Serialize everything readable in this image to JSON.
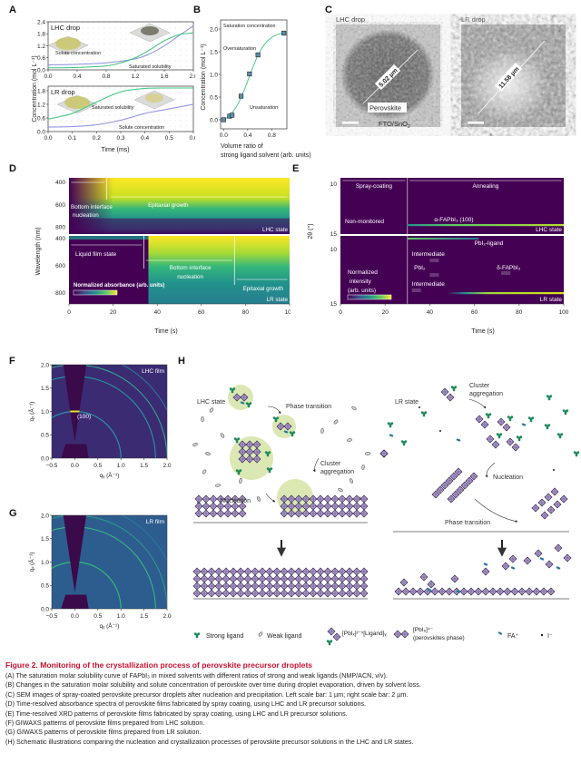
{
  "panels": {
    "A": {
      "label": "A"
    },
    "B": {
      "label": "B"
    },
    "C": {
      "label": "C"
    },
    "D": {
      "label": "D"
    },
    "E": {
      "label": "E"
    },
    "F": {
      "label": "F"
    },
    "G": {
      "label": "G"
    },
    "H": {
      "label": "H"
    }
  },
  "C_images": {
    "left_title": "LHC drop",
    "left_measure": "5.02 µm",
    "left_perovskite": "Perovskite",
    "left_substrate": "FTO/SnO",
    "left_substrate_sub": "2",
    "right_title": "LR drop",
    "right_measure": "11.58 µm"
  },
  "H_schematic": {
    "lhc_state": "LHC state",
    "lhc_phase_transition": "Phase transition",
    "lhc_cluster": "Cluster",
    "lhc_aggregation": "aggregation",
    "lhc_nucleation": "Nucleation",
    "lr_state": "LR state",
    "lr_cluster": "Cluster",
    "lr_aggregation": "aggregation",
    "lr_nucleation": "Nucleation",
    "lr_phase_transition": "Phase transition",
    "legend": {
      "strong": "Strong ligand",
      "weak": "Weak ligand",
      "complex": "[PbIₓ]²⁻ˣ[Ligand]ᵧ",
      "perov": "[PbI₆]⁴⁻",
      "perov_sub": "(perovskites phase)",
      "fa": "FA⁺",
      "iodide": "I⁻"
    }
  },
  "caption": {
    "title": "Figure 2.  Monitoring of the crystallization process of perovskite precursor droplets",
    "lines": [
      "(A) The saturation molar solubility curve of FAPbI₃ in mixed solvents with different ratios of strong and weak ligands (NMP/ACN, v/v).",
      "(B) Changes in the saturation molar solubility and solute concentration of perovskite over time during droplet evaporation, driven by solvent loss.",
      "(C) SEM images of spray-coated perovskite precursor droplets after nucleation and precipitation. Left scale bar: 1 µm; right scale bar: 2 µm.",
      "(D) Time-resolved absorbance spectra of perovskite films fabricated by spray coating, using LHC and LR precursor solutions.",
      "(E) Time-resolved XRD patterns of perovskite films fabricated by spray coating, using LHC and LR precursor solutions.",
      "(F) GIWAXS patterns of perovskite films prepared from LHC solution.",
      "(G) GIWAXS patterns of perovskite films prepared from LR solution.",
      "(H) Schematic illustrations comparing the nucleation and crystallization processes of perovskite precursor solutions in the LHC and LR states."
    ]
  },
  "chart_data": [
    {
      "id": "A-top",
      "type": "line",
      "title": "LHC drop",
      "xlabel": "Time (ms)",
      "ylabel": "Concentration (mol L⁻¹)",
      "xlim": [
        0,
        2.0
      ],
      "ylim": [
        0,
        2.4
      ],
      "xticks": [
        "0.0",
        "0.4",
        "0.8",
        "1.2",
        "1.6",
        "2.0"
      ],
      "yticks": [
        "0.0",
        "0.6",
        "1.2",
        "1.8",
        "2.4"
      ],
      "series": [
        {
          "name": "Solute concentration",
          "color": "#8a8ee0",
          "x": [
            0,
            0.4,
            0.8,
            1.2,
            1.4,
            1.6,
            1.8,
            2.0
          ],
          "y": [
            0.25,
            0.28,
            0.35,
            0.55,
            0.8,
            1.2,
            1.7,
            2.2
          ]
        },
        {
          "name": "Saturated solubility",
          "color": "#3cc47c",
          "x": [
            0,
            0.4,
            0.8,
            1.0,
            1.2,
            1.4,
            1.6,
            1.8,
            2.0
          ],
          "y": [
            0.1,
            0.12,
            0.2,
            0.35,
            0.6,
            1.0,
            1.45,
            1.75,
            1.85
          ]
        }
      ],
      "annotations": [
        "Solute concentration",
        "Saturated solubility"
      ]
    },
    {
      "id": "A-bottom",
      "type": "line",
      "title": "LR drop",
      "xlabel": "Time (ms)",
      "ylabel": "Concentration (mol L⁻¹)",
      "xlim": [
        0,
        0.6
      ],
      "ylim": [
        0,
        2.0
      ],
      "xticks": [
        "0.0",
        "0.1",
        "0.2",
        "0.3",
        "0.4",
        "0.5",
        "0.6"
      ],
      "yticks": [
        "0.0",
        "0.6",
        "1.2",
        "1.8"
      ],
      "series": [
        {
          "name": "Saturated solubility",
          "color": "#3cc47c",
          "x": [
            0,
            0.1,
            0.2,
            0.3,
            0.4,
            0.5,
            0.6
          ],
          "y": [
            0.55,
            0.8,
            1.3,
            1.75,
            1.9,
            1.92,
            1.92
          ]
        },
        {
          "name": "Solute concentration",
          "color": "#8a8ee0",
          "x": [
            0,
            0.1,
            0.2,
            0.3,
            0.4,
            0.5,
            0.6
          ],
          "y": [
            0.2,
            0.22,
            0.3,
            0.5,
            0.8,
            1.0,
            1.2
          ]
        }
      ],
      "annotations": [
        "Saturated solubility",
        "Solute concentration"
      ]
    },
    {
      "id": "B",
      "type": "scatter",
      "title": "",
      "xlabel": "Volume ratio of strong ligand solvent (arb. units)",
      "xlabel_line1": "Volume ratio of",
      "xlabel_line2": "strong ligand solvent (arb. units)",
      "ylabel": "Concentration (mol L⁻¹)",
      "xlim": [
        -0.05,
        1.05
      ],
      "ylim": [
        -0.2,
        2.2
      ],
      "xticks": [
        "0.0",
        "0.4",
        "0.8"
      ],
      "yticks": [
        "0.0",
        "0.5",
        "1.0",
        "1.5",
        "2.0"
      ],
      "x": [
        0.0,
        0.1,
        0.14,
        0.29,
        0.43,
        0.57,
        1.0
      ],
      "y": [
        0.0,
        0.08,
        0.1,
        0.52,
        1.01,
        1.43,
        1.91
      ],
      "fit_color": "#3cc47c",
      "annotations": [
        "Saturation concentration",
        "Oversaturation",
        "Unsaturation"
      ]
    },
    {
      "id": "D",
      "type": "heatmap",
      "title": "Time-resolved absorbance",
      "xlabel": "Time (s)",
      "ylabel": "Wavelength (nm)",
      "xlim": [
        0,
        100
      ],
      "ylim": [
        400,
        900
      ],
      "xticks": [
        "0",
        "20",
        "40",
        "60",
        "80",
        "100"
      ],
      "yticks": [
        "400",
        "600",
        "800"
      ],
      "colorbar": "Normalized absorbance (arb. units)",
      "panels": [
        {
          "state": "LHC state",
          "regions": [
            {
              "label": "Bottom interface nucleation",
              "x": [
                0,
                17
              ]
            },
            {
              "label": "Epitaxial growth",
              "x": [
                17,
                100
              ]
            }
          ],
          "onset_s": 3
        },
        {
          "state": "LR state",
          "regions": [
            {
              "label": "Liquid film state",
              "x": [
                0,
                34
              ]
            },
            {
              "label": "Bottom interface nucleation",
              "x": [
                34,
                75
              ]
            },
            {
              "label": "Epitaxial growth",
              "x": [
                75,
                100
              ]
            }
          ],
          "onset_s": 36
        }
      ]
    },
    {
      "id": "E",
      "type": "heatmap",
      "title": "Time-resolved XRD",
      "xlabel": "Time (s)",
      "ylabel": "2θ (°)",
      "xlim": [
        0,
        100
      ],
      "ylim": [
        8,
        15
      ],
      "xticks": [
        "0",
        "20",
        "40",
        "60",
        "80",
        "100"
      ],
      "yticks": [
        "10",
        "15"
      ],
      "colorbar": "Normalized intensity (arb. units)",
      "phases": [
        "Spray-coating",
        "Annealing"
      ],
      "phase_boundary_s": 30,
      "panels": [
        {
          "state": "LHC state",
          "labels": [
            "Non-monitored",
            "α-FAPbI₃ (100)"
          ],
          "peaks": [
            {
              "name": "α-FAPbI3 (100)",
              "two_theta": 14.0,
              "t_start": 30
            }
          ]
        },
        {
          "state": "LR state",
          "labels": [
            "PbI₂-ligand",
            "Intermediate",
            "PbI₂",
            "Intermediate",
            "δ-FAPbI₃"
          ],
          "peaks": [
            {
              "name": "PbI2-ligand",
              "two_theta": 8.3,
              "t_start": 30,
              "t_end": 62
            },
            {
              "name": "α-FAPbI3",
              "two_theta": 14.0,
              "t_start": 50
            }
          ]
        }
      ]
    },
    {
      "id": "F",
      "type": "heatmap",
      "title": "LHC film",
      "xlabel": "qᵧ (Å⁻¹)",
      "ylabel": "qₓ (Å⁻¹)",
      "xlim": [
        -0.5,
        2.0
      ],
      "ylim": [
        0,
        2.0
      ],
      "xticks": [
        "−0.5",
        "0.0",
        "0.5",
        "1.0",
        "1.5",
        "2.0"
      ],
      "yticks": [
        "0.0",
        "0.5",
        "1.0",
        "1.5",
        "2.0"
      ],
      "annotations": [
        "(100)"
      ],
      "rings_q": [
        1.0,
        1.75,
        2.0,
        2.25
      ]
    },
    {
      "id": "G",
      "type": "heatmap",
      "title": "LR film",
      "xlabel": "qᵧ (Å⁻¹)",
      "ylabel": "qₓ (Å⁻¹)",
      "xlim": [
        -0.5,
        2.0
      ],
      "ylim": [
        0,
        2.0
      ],
      "xticks": [
        "−0.5",
        "0.0",
        "0.5",
        "1.0",
        "1.5",
        "2.0"
      ],
      "yticks": [
        "0.0",
        "0.5",
        "1.0",
        "1.5",
        "2.0"
      ],
      "rings_q": [
        1.0,
        1.75,
        2.0,
        2.25
      ]
    }
  ],
  "colors": {
    "green_curve": "#3cc47c",
    "purple_curve": "#8a8ee0",
    "viridis_low": "#440154",
    "viridis_mid": "#21918c",
    "viridis_high": "#fde725",
    "caption_title": "#c8102e"
  }
}
